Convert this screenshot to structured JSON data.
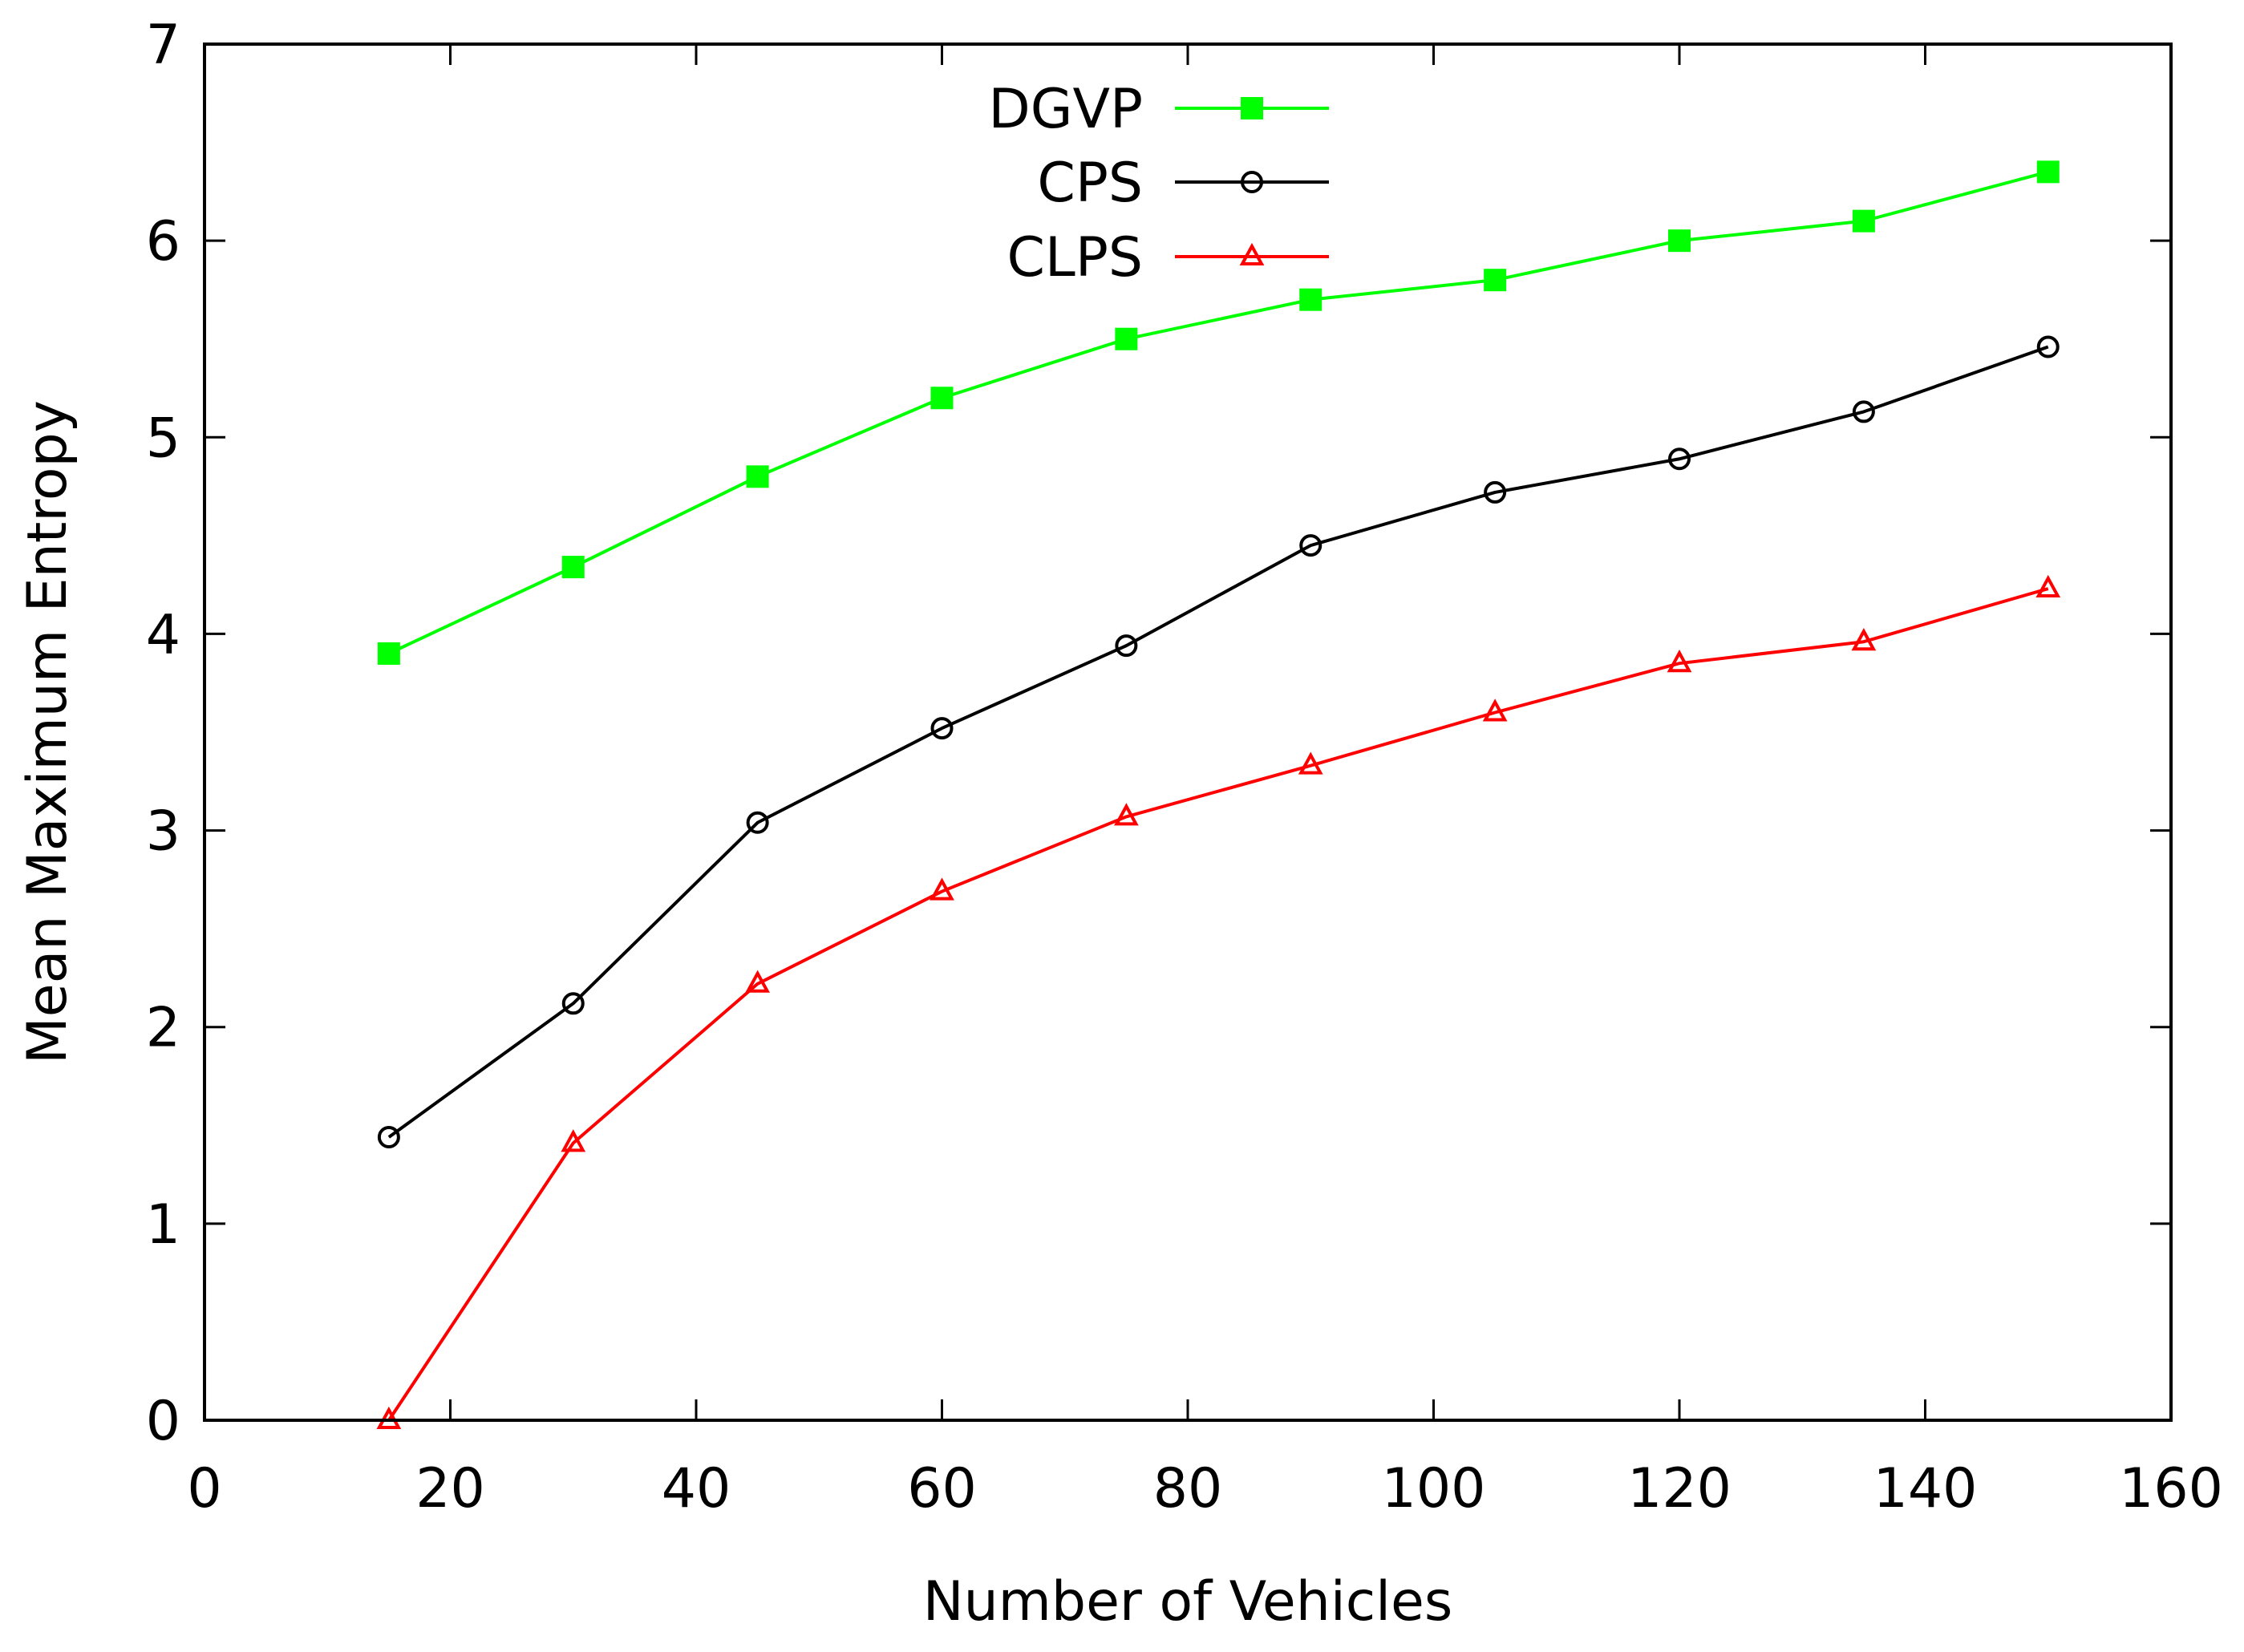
{
  "chart_data": {
    "type": "line",
    "title": "",
    "xlabel": "Number of Vehicles",
    "ylabel": "Mean Maximum Entropy",
    "xlim": [
      0,
      160
    ],
    "ylim": [
      0,
      7
    ],
    "xticks": [
      0,
      20,
      40,
      60,
      80,
      100,
      120,
      140,
      160
    ],
    "yticks": [
      0,
      1,
      2,
      3,
      4,
      5,
      6,
      7
    ],
    "grid": false,
    "legend_position": "top-center",
    "x": [
      15,
      30,
      45,
      60,
      75,
      90,
      105,
      120,
      135,
      150
    ],
    "series": [
      {
        "name": "DGVP",
        "color": "#00ff00",
        "marker": "filled-square",
        "values": [
          3.9,
          4.34,
          4.8,
          5.2,
          5.5,
          5.7,
          5.8,
          6.0,
          6.1,
          6.35
        ]
      },
      {
        "name": "CPS",
        "color": "#000000",
        "marker": "open-circle",
        "values": [
          1.44,
          2.12,
          3.04,
          3.52,
          3.94,
          4.45,
          4.72,
          4.89,
          5.13,
          5.46
        ]
      },
      {
        "name": "CLPS",
        "color": "#ff0000",
        "marker": "open-triangle",
        "values": [
          0.0,
          1.41,
          2.22,
          2.69,
          3.07,
          3.33,
          3.6,
          3.85,
          3.96,
          4.23
        ]
      }
    ]
  }
}
